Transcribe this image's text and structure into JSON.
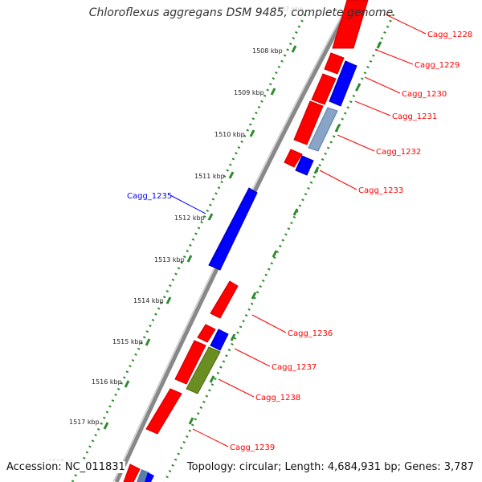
{
  "title": "Chloroflexus aggregans DSM 9485, complete genome",
  "footer": {
    "accession_label": "Accession:",
    "accession": "NC_011831",
    "topology_text": "Topology: circular; Length: 4,684,931 bp; Genes: 3,787"
  },
  "colors": {
    "forward": "#ff0000",
    "reverse": "#0000ff",
    "rna": "#6b8e23",
    "steel": "#5a7fa8",
    "ruler": "#2e8b2e",
    "backbone": "#888888"
  },
  "ruler": {
    "partial_top": "1507 kbp",
    "partial_bottom": "1518 kbp",
    "ticks": [
      "1508 kbp",
      "1509 kbp",
      "1510 kbp",
      "1511 kbp",
      "1512 kbp",
      "1513 kbp",
      "1514 kbp",
      "1515 kbp",
      "1516 kbp",
      "1517 kbp"
    ]
  },
  "gene_labels": [
    {
      "text": "Cagg_1228",
      "strand": "forward"
    },
    {
      "text": "Cagg_1229",
      "strand": "forward"
    },
    {
      "text": "Cagg_1230",
      "strand": "forward"
    },
    {
      "text": "Cagg_1231",
      "strand": "forward"
    },
    {
      "text": "Cagg_1232",
      "strand": "forward"
    },
    {
      "text": "Cagg_1233",
      "strand": "forward"
    },
    {
      "text": "Cagg_1235",
      "strand": "reverse"
    },
    {
      "text": "Cagg_1236",
      "strand": "forward"
    },
    {
      "text": "Cagg_1237",
      "strand": "forward"
    },
    {
      "text": "Cagg_1238",
      "strand": "forward"
    },
    {
      "text": "Cagg_1239",
      "strand": "forward"
    }
  ]
}
